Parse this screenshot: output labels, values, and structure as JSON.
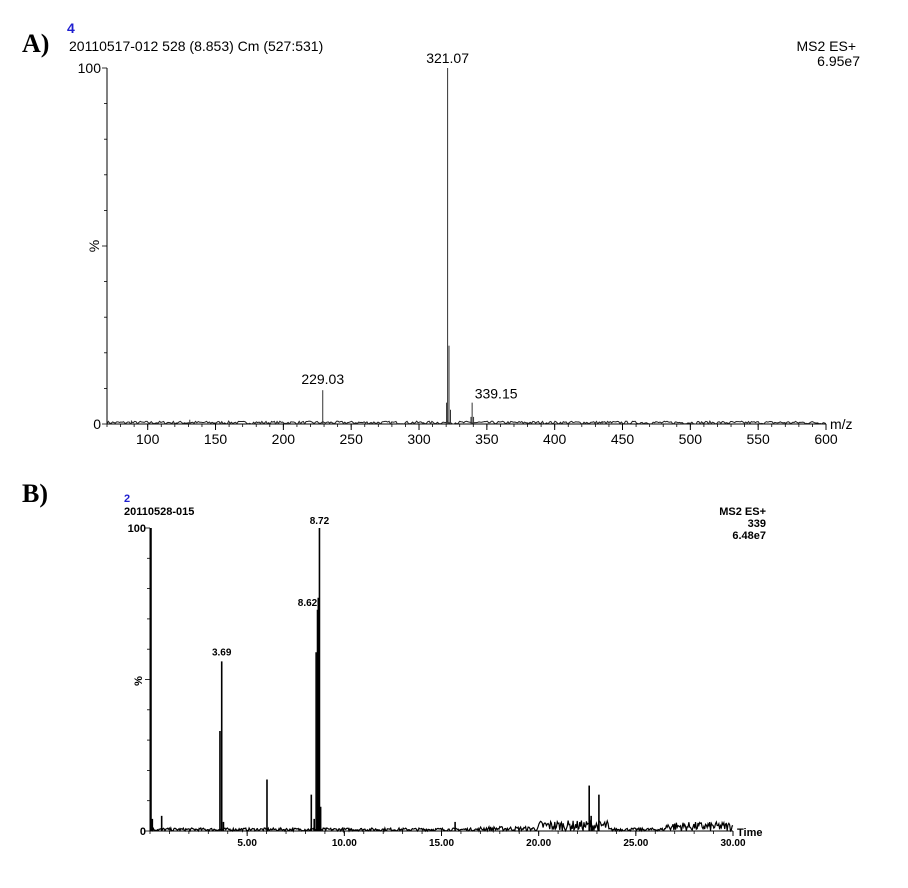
{
  "chart_data": [
    {
      "type": "line",
      "panel_label": "A)",
      "trace_number": "4",
      "header": "20110517-012 528 (8.853) Cm (527:531)",
      "mode": "MS2 ES+",
      "intensity": "6.95e7",
      "xlabel": "m/z",
      "ylabel": "%",
      "xlim": [
        70,
        600
      ],
      "ylim": [
        0,
        100
      ],
      "x_ticks": [
        "100",
        "150",
        "200",
        "250",
        "300",
        "350",
        "400",
        "450",
        "500",
        "550",
        "600"
      ],
      "y_ticks": [
        "0",
        "100"
      ],
      "peaks": [
        {
          "x": 88,
          "y": 1
        },
        {
          "x": 131,
          "y": 1.2
        },
        {
          "x": 229.03,
          "y": 9.5
        },
        {
          "x": 320.3,
          "y": 6
        },
        {
          "x": 321.07,
          "y": 100
        },
        {
          "x": 322.1,
          "y": 22
        },
        {
          "x": 323.2,
          "y": 4
        },
        {
          "x": 338.3,
          "y": 2
        },
        {
          "x": 339.15,
          "y": 6
        },
        {
          "x": 340.2,
          "y": 2
        },
        {
          "x": 435,
          "y": 0.8
        }
      ],
      "peak_labels": [
        {
          "x": 321.07,
          "y": 100,
          "text": "321.07"
        },
        {
          "x": 229.03,
          "y": 9.5,
          "text": "229.03"
        },
        {
          "x": 339.15,
          "y": 6,
          "text": "339.15"
        }
      ]
    },
    {
      "type": "line",
      "panel_label": "B)",
      "trace_number": "2",
      "header": "20110528-015",
      "mode": "MS2 ES+",
      "mass": "339",
      "intensity": "6.48e7",
      "xlabel": "Time",
      "ylabel": "%",
      "xlim": [
        0,
        30
      ],
      "ylim": [
        0,
        100
      ],
      "x_ticks": [
        "5.00",
        "10.00",
        "15.00",
        "20.00",
        "25.00",
        "30.00"
      ],
      "y_ticks": [
        "0",
        "100"
      ],
      "peaks": [
        {
          "x": 0.05,
          "y": 100
        },
        {
          "x": 0.12,
          "y": 4
        },
        {
          "x": 0.6,
          "y": 5
        },
        {
          "x": 3.6,
          "y": 33
        },
        {
          "x": 3.69,
          "y": 56
        },
        {
          "x": 3.78,
          "y": 3
        },
        {
          "x": 6.02,
          "y": 17
        },
        {
          "x": 8.3,
          "y": 12
        },
        {
          "x": 8.45,
          "y": 4
        },
        {
          "x": 8.55,
          "y": 59
        },
        {
          "x": 8.62,
          "y": 73
        },
        {
          "x": 8.66,
          "y": 77
        },
        {
          "x": 8.72,
          "y": 100
        },
        {
          "x": 8.78,
          "y": 8
        },
        {
          "x": 15.7,
          "y": 3
        },
        {
          "x": 22.6,
          "y": 15
        },
        {
          "x": 22.7,
          "y": 5
        },
        {
          "x": 23.1,
          "y": 12
        }
      ],
      "peak_labels": [
        {
          "x": 8.72,
          "y": 100,
          "text": "8.72"
        },
        {
          "x": 8.62,
          "y": 73,
          "text": "8.62"
        },
        {
          "x": 3.69,
          "y": 56,
          "text": "3.69"
        }
      ]
    }
  ]
}
